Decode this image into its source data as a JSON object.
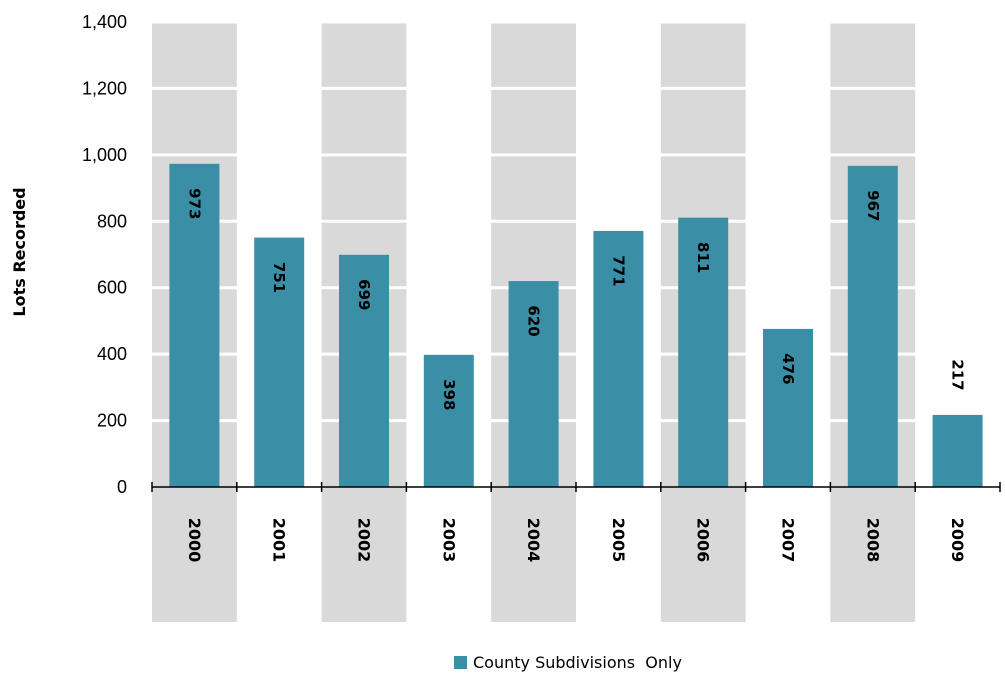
{
  "chart_data": {
    "type": "bar",
    "title": "",
    "xlabel": "",
    "ylabel": "Lots Recorded",
    "categories": [
      "2000",
      "2001",
      "2002",
      "2003",
      "2004",
      "2005",
      "2006",
      "2007",
      "2008",
      "2009"
    ],
    "series": [
      {
        "name": "County Subdivisions  Only",
        "values": [
          973,
          751,
          699,
          398,
          620,
          771,
          811,
          476,
          967,
          217
        ],
        "color": "#3a8fa6"
      }
    ],
    "data_labels": [
      "973",
      "751",
      "699",
      "398",
      "620",
      "771",
      "811",
      "476",
      "967",
      "217"
    ],
    "ylim": [
      0,
      1400
    ],
    "yticks": [
      0,
      200,
      400,
      600,
      800,
      1000,
      1200,
      1400
    ],
    "ytick_labels": [
      "0",
      "200",
      "400",
      "600",
      "800",
      "1,000",
      "1,200",
      "1,400"
    ],
    "grid": true,
    "legend_position": "bottom",
    "band_color": "#d9d9d9"
  }
}
